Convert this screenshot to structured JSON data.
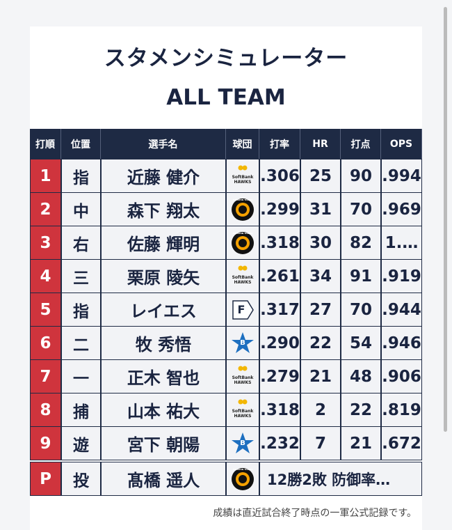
{
  "header": {
    "title": "スタメンシミュレーター",
    "subtitle": "ALL TEAM"
  },
  "table": {
    "columns": [
      "打順",
      "位置",
      "選手名",
      "球団",
      "打率",
      "HR",
      "打点",
      "OPS"
    ],
    "rows": [
      {
        "order": "1",
        "position": "指",
        "name": "近藤 健介",
        "team": "SoftBank HAWKS",
        "avg": ".306",
        "hr": "25",
        "rbi": "90",
        "ops": ".994"
      },
      {
        "order": "2",
        "position": "中",
        "name": "森下 翔太",
        "team": "HANSHIN TIGERS",
        "avg": ".299",
        "hr": "31",
        "rbi": "70",
        "ops": ".969"
      },
      {
        "order": "3",
        "position": "右",
        "name": "佐藤 輝明",
        "team": "HANSHIN TIGERS",
        "avg": ".318",
        "hr": "30",
        "rbi": "82",
        "ops": "1.…"
      },
      {
        "order": "4",
        "position": "三",
        "name": "栗原 陵矢",
        "team": "SoftBank HAWKS",
        "avg": ".261",
        "hr": "34",
        "rbi": "91",
        "ops": ".919"
      },
      {
        "order": "5",
        "position": "指",
        "name": "レイエス",
        "team": "F",
        "avg": ".317",
        "hr": "27",
        "rbi": "70",
        "ops": ".944"
      },
      {
        "order": "6",
        "position": "二",
        "name": "牧 秀悟",
        "team": "B",
        "avg": ".290",
        "hr": "22",
        "rbi": "54",
        "ops": ".946"
      },
      {
        "order": "7",
        "position": "一",
        "name": "正木 智也",
        "team": "SoftBank HAWKS",
        "avg": ".279",
        "hr": "21",
        "rbi": "48",
        "ops": ".906"
      },
      {
        "order": "8",
        "position": "捕",
        "name": "山本 祐大",
        "team": "SoftBank HAWKS",
        "avg": ".318",
        "hr": "2",
        "rbi": "22",
        "ops": ".819"
      },
      {
        "order": "9",
        "position": "遊",
        "name": "宮下 朝陽",
        "team": "B",
        "avg": ".232",
        "hr": "7",
        "rbi": "21",
        "ops": ".672"
      }
    ],
    "pitcher": {
      "order": "P",
      "position": "投",
      "name": "髙橋 遥人",
      "team": "HANSHIN TIGERS",
      "stats": "12勝2敗 防御率…"
    }
  },
  "footer": "成績は直近試合終了時点の一軍公式記録です。"
}
